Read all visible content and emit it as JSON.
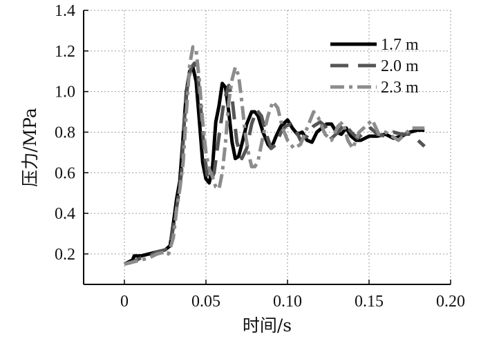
{
  "chart_data": {
    "type": "line",
    "title": "",
    "xlabel": "时间/s",
    "ylabel": "压力/MPa",
    "xlim": [
      -0.025,
      0.2
    ],
    "ylim": [
      0.05,
      1.4
    ],
    "xticks": [
      0,
      0.05,
      0.1,
      0.15,
      0.2
    ],
    "xtick_labels": [
      "0",
      "0.05",
      "0.10",
      "0.15",
      "0.20"
    ],
    "yticks": [
      0.2,
      0.4,
      0.6,
      0.8,
      1.0,
      1.2,
      1.4
    ],
    "ytick_labels": [
      "0.2",
      "0.4",
      "0.6",
      "0.8",
      "1.0",
      "1.2",
      "1.4"
    ],
    "grid": true,
    "legend_position": "top-right",
    "series": [
      {
        "name": "1.7 m",
        "color": "#000000",
        "dash": "solid",
        "points": [
          [
            0,
            0.15
          ],
          [
            0.005,
            0.17
          ],
          [
            0.006,
            0.19
          ],
          [
            0.01,
            0.19
          ],
          [
            0.015,
            0.2
          ],
          [
            0.02,
            0.21
          ],
          [
            0.025,
            0.22
          ],
          [
            0.028,
            0.24
          ],
          [
            0.03,
            0.35
          ],
          [
            0.032,
            0.47
          ],
          [
            0.034,
            0.56
          ],
          [
            0.036,
            0.78
          ],
          [
            0.038,
            1.0
          ],
          [
            0.04,
            1.1
          ],
          [
            0.042,
            1.12
          ],
          [
            0.044,
            1.05
          ],
          [
            0.046,
            0.85
          ],
          [
            0.048,
            0.65
          ],
          [
            0.05,
            0.57
          ],
          [
            0.052,
            0.55
          ],
          [
            0.054,
            0.62
          ],
          [
            0.056,
            0.85
          ],
          [
            0.058,
            0.93
          ],
          [
            0.06,
            1.04
          ],
          [
            0.062,
            1.02
          ],
          [
            0.064,
            0.9
          ],
          [
            0.066,
            0.75
          ],
          [
            0.068,
            0.67
          ],
          [
            0.07,
            0.68
          ],
          [
            0.072,
            0.74
          ],
          [
            0.075,
            0.84
          ],
          [
            0.078,
            0.9
          ],
          [
            0.08,
            0.9
          ],
          [
            0.082,
            0.88
          ],
          [
            0.085,
            0.8
          ],
          [
            0.088,
            0.74
          ],
          [
            0.09,
            0.72
          ],
          [
            0.093,
            0.78
          ],
          [
            0.096,
            0.83
          ],
          [
            0.1,
            0.86
          ],
          [
            0.103,
            0.82
          ],
          [
            0.106,
            0.79
          ],
          [
            0.109,
            0.8
          ],
          [
            0.112,
            0.76
          ],
          [
            0.115,
            0.75
          ],
          [
            0.118,
            0.8
          ],
          [
            0.121,
            0.82
          ],
          [
            0.124,
            0.84
          ],
          [
            0.127,
            0.84
          ],
          [
            0.13,
            0.8
          ],
          [
            0.133,
            0.79
          ],
          [
            0.136,
            0.82
          ],
          [
            0.139,
            0.78
          ],
          [
            0.142,
            0.76
          ],
          [
            0.145,
            0.76
          ],
          [
            0.15,
            0.78
          ],
          [
            0.155,
            0.78
          ],
          [
            0.16,
            0.79
          ],
          [
            0.165,
            0.77
          ],
          [
            0.17,
            0.78
          ],
          [
            0.175,
            0.8
          ],
          [
            0.18,
            0.81
          ],
          [
            0.184,
            0.81
          ]
        ]
      },
      {
        "name": "2.0 m",
        "color": "#555555",
        "dash": "dashed",
        "points": [
          [
            0,
            0.15
          ],
          [
            0.005,
            0.16
          ],
          [
            0.01,
            0.18
          ],
          [
            0.015,
            0.19
          ],
          [
            0.02,
            0.21
          ],
          [
            0.025,
            0.22
          ],
          [
            0.028,
            0.24
          ],
          [
            0.031,
            0.38
          ],
          [
            0.033,
            0.48
          ],
          [
            0.035,
            0.6
          ],
          [
            0.037,
            0.9
          ],
          [
            0.039,
            1.05
          ],
          [
            0.041,
            1.12
          ],
          [
            0.043,
            1.14
          ],
          [
            0.045,
            1.08
          ],
          [
            0.047,
            0.9
          ],
          [
            0.049,
            0.7
          ],
          [
            0.051,
            0.57
          ],
          [
            0.053,
            0.56
          ],
          [
            0.055,
            0.6
          ],
          [
            0.058,
            0.78
          ],
          [
            0.061,
            0.95
          ],
          [
            0.064,
            1.03
          ],
          [
            0.066,
            0.97
          ],
          [
            0.069,
            0.75
          ],
          [
            0.072,
            0.67
          ],
          [
            0.075,
            0.72
          ],
          [
            0.078,
            0.84
          ],
          [
            0.081,
            0.91
          ],
          [
            0.084,
            0.88
          ],
          [
            0.087,
            0.79
          ],
          [
            0.09,
            0.72
          ],
          [
            0.093,
            0.74
          ],
          [
            0.096,
            0.8
          ],
          [
            0.099,
            0.83
          ],
          [
            0.102,
            0.84
          ],
          [
            0.105,
            0.81
          ],
          [
            0.108,
            0.76
          ],
          [
            0.112,
            0.78
          ],
          [
            0.116,
            0.83
          ],
          [
            0.12,
            0.85
          ],
          [
            0.123,
            0.83
          ],
          [
            0.127,
            0.77
          ],
          [
            0.131,
            0.8
          ],
          [
            0.135,
            0.84
          ],
          [
            0.139,
            0.8
          ],
          [
            0.143,
            0.77
          ],
          [
            0.147,
            0.8
          ],
          [
            0.151,
            0.82
          ],
          [
            0.155,
            0.79
          ],
          [
            0.16,
            0.78
          ],
          [
            0.165,
            0.8
          ],
          [
            0.17,
            0.79
          ],
          [
            0.175,
            0.79
          ],
          [
            0.18,
            0.76
          ],
          [
            0.184,
            0.73
          ]
        ]
      },
      {
        "name": "2.3 m",
        "color": "#8c8c8c",
        "dash": "dashdot",
        "points": [
          [
            0,
            0.15
          ],
          [
            0.005,
            0.16
          ],
          [
            0.01,
            0.17
          ],
          [
            0.015,
            0.18
          ],
          [
            0.02,
            0.2
          ],
          [
            0.025,
            0.21
          ],
          [
            0.027,
            0.2
          ],
          [
            0.03,
            0.28
          ],
          [
            0.032,
            0.42
          ],
          [
            0.034,
            0.52
          ],
          [
            0.036,
            0.65
          ],
          [
            0.038,
            0.9
          ],
          [
            0.04,
            1.13
          ],
          [
            0.042,
            1.22
          ],
          [
            0.044,
            1.2
          ],
          [
            0.046,
            1.05
          ],
          [
            0.048,
            0.85
          ],
          [
            0.05,
            0.7
          ],
          [
            0.052,
            0.62
          ],
          [
            0.054,
            0.58
          ],
          [
            0.056,
            0.53
          ],
          [
            0.058,
            0.52
          ],
          [
            0.06,
            0.6
          ],
          [
            0.062,
            0.75
          ],
          [
            0.064,
            0.95
          ],
          [
            0.066,
            1.06
          ],
          [
            0.068,
            1.12
          ],
          [
            0.07,
            1.08
          ],
          [
            0.072,
            0.95
          ],
          [
            0.074,
            0.8
          ],
          [
            0.076,
            0.7
          ],
          [
            0.078,
            0.63
          ],
          [
            0.08,
            0.63
          ],
          [
            0.082,
            0.66
          ],
          [
            0.085,
            0.78
          ],
          [
            0.088,
            0.88
          ],
          [
            0.091,
            0.95
          ],
          [
            0.094,
            0.92
          ],
          [
            0.097,
            0.82
          ],
          [
            0.1,
            0.76
          ],
          [
            0.104,
            0.72
          ],
          [
            0.108,
            0.74
          ],
          [
            0.112,
            0.82
          ],
          [
            0.116,
            0.9
          ],
          [
            0.119,
            0.87
          ],
          [
            0.123,
            0.79
          ],
          [
            0.127,
            0.76
          ],
          [
            0.131,
            0.83
          ],
          [
            0.134,
            0.85
          ],
          [
            0.137,
            0.76
          ],
          [
            0.14,
            0.72
          ],
          [
            0.144,
            0.8
          ],
          [
            0.148,
            0.83
          ],
          [
            0.152,
            0.86
          ],
          [
            0.156,
            0.79
          ],
          [
            0.16,
            0.8
          ],
          [
            0.164,
            0.78
          ],
          [
            0.168,
            0.76
          ],
          [
            0.172,
            0.79
          ],
          [
            0.176,
            0.82
          ],
          [
            0.18,
            0.82
          ],
          [
            0.184,
            0.82
          ]
        ]
      }
    ]
  }
}
